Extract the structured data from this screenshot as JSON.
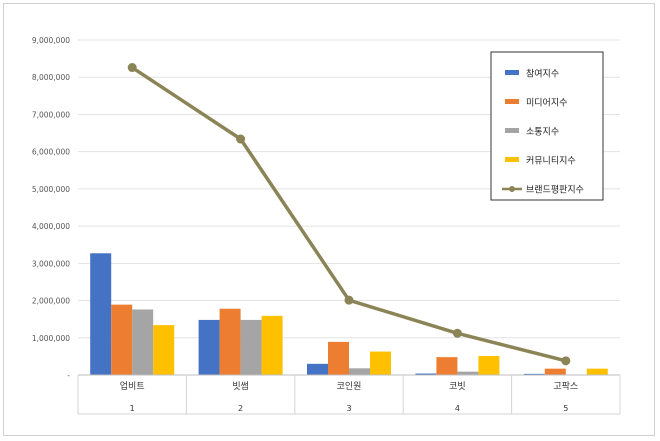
{
  "chart_data": {
    "type": "bar",
    "title": "",
    "xlabel": "",
    "ylabel": "",
    "categories": [
      "업비트",
      "빗썸",
      "코인원",
      "코빗",
      "고팍스"
    ],
    "category_index": [
      "1",
      "2",
      "3",
      "4",
      "5"
    ],
    "ylim": [
      0,
      9000000
    ],
    "yticks": [
      0,
      1000000,
      2000000,
      3000000,
      4000000,
      5000000,
      6000000,
      7000000,
      8000000,
      9000000
    ],
    "ytick_labels": [
      "-",
      "1,000,000",
      "2,000,000",
      "3,000,000",
      "4,000,000",
      "5,000,000",
      "6,000,000",
      "7,000,000",
      "8,000,000",
      "9,000,000"
    ],
    "grid": true,
    "legend_position": "top-right",
    "series": [
      {
        "name": "참여지수",
        "kind": "bar",
        "color": "#4472C4",
        "values": [
          3270000,
          1480000,
          300000,
          40000,
          30000
        ]
      },
      {
        "name": "미디어지수",
        "kind": "bar",
        "color": "#ED7D31",
        "values": [
          1890000,
          1780000,
          890000,
          480000,
          170000
        ]
      },
      {
        "name": "소통지수",
        "kind": "bar",
        "color": "#A5A5A5",
        "values": [
          1760000,
          1480000,
          180000,
          90000,
          10000
        ]
      },
      {
        "name": "커뮤니티지수",
        "kind": "bar",
        "color": "#FFC000",
        "values": [
          1340000,
          1590000,
          630000,
          510000,
          170000
        ]
      },
      {
        "name": "브랜드평판지수",
        "kind": "line",
        "color": "#8B8456",
        "values": [
          8260000,
          6340000,
          2010000,
          1120000,
          380000
        ]
      }
    ]
  }
}
